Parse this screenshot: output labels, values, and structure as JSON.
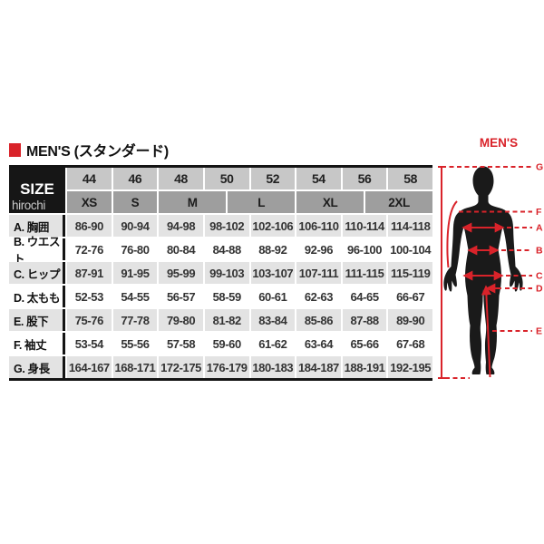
{
  "header": {
    "title": "MEN'S (スタンダード)"
  },
  "chart_data": {
    "type": "table",
    "title": "MEN'S (スタンダード)",
    "corner_label": "SIZE",
    "watermark": "hirochi",
    "columns": [
      "44",
      "46",
      "48",
      "50",
      "52",
      "54",
      "56",
      "58"
    ],
    "size_bands": [
      {
        "label": "XS",
        "span": 2
      },
      {
        "label": "S",
        "span": 2
      },
      {
        "label": "M",
        "span": 3
      },
      {
        "label": "L",
        "span": 3
      },
      {
        "label": "XL",
        "span": 3
      },
      {
        "label": "2XL",
        "span": 3
      }
    ],
    "rows": [
      {
        "label": "A. 胸囲",
        "values": [
          "86-90",
          "90-94",
          "94-98",
          "98-102",
          "102-106",
          "106-110",
          "110-114",
          "114-118"
        ]
      },
      {
        "label": "B. ウエスト",
        "values": [
          "72-76",
          "76-80",
          "80-84",
          "84-88",
          "88-92",
          "92-96",
          "96-100",
          "100-104"
        ]
      },
      {
        "label": "C. ヒップ",
        "values": [
          "87-91",
          "91-95",
          "95-99",
          "99-103",
          "103-107",
          "107-111",
          "111-115",
          "115-119"
        ]
      },
      {
        "label": "D. 太もも",
        "values": [
          "52-53",
          "54-55",
          "56-57",
          "58-59",
          "60-61",
          "62-63",
          "64-65",
          "66-67"
        ]
      },
      {
        "label": "E. 股下",
        "values": [
          "75-76",
          "77-78",
          "79-80",
          "81-82",
          "83-84",
          "85-86",
          "87-88",
          "89-90"
        ]
      },
      {
        "label": "F. 袖丈",
        "values": [
          "53-54",
          "55-56",
          "57-58",
          "59-60",
          "61-62",
          "63-64",
          "65-66",
          "67-68"
        ]
      },
      {
        "label": "G. 身長",
        "values": [
          "164-167",
          "168-171",
          "172-175",
          "176-179",
          "180-183",
          "184-187",
          "188-191",
          "192-195"
        ]
      }
    ]
  },
  "figure": {
    "title": "MEN'S",
    "labels": [
      "G",
      "F",
      "A",
      "B",
      "C",
      "D",
      "E"
    ]
  },
  "colors": {
    "accent_red": "#d9232a",
    "column_header_bg": "#c7c7c7",
    "size_band_bg": "#9e9e9e",
    "row_alt_bg": "#e3e3e3",
    "corner_cell_bg": "#161616",
    "silhouette": "#1a1a1a"
  }
}
